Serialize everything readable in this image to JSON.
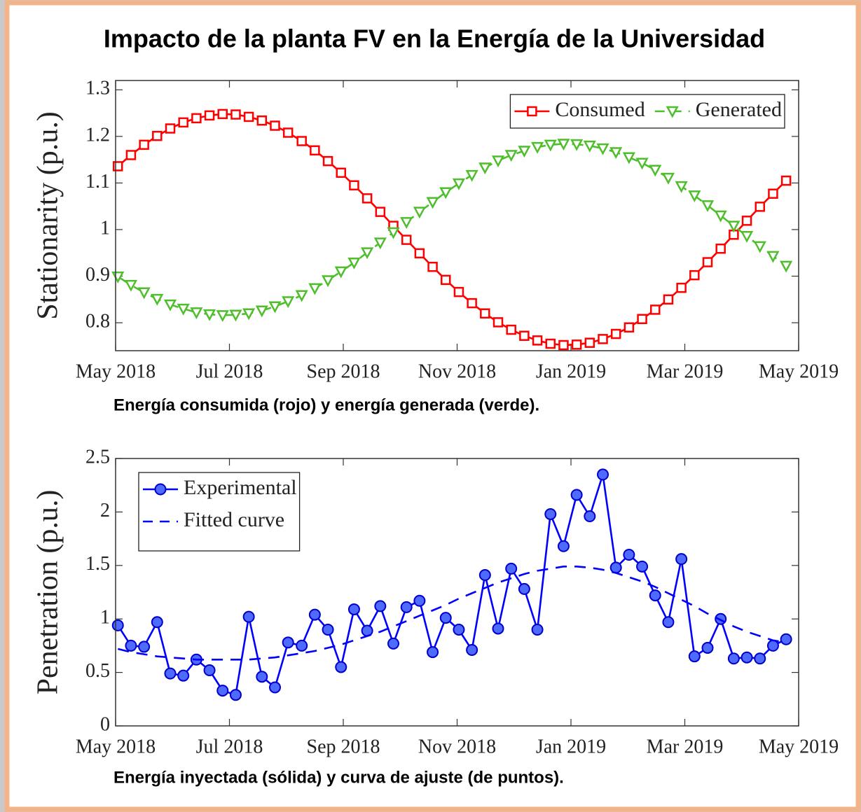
{
  "title": "Impacto de la planta FV en la Energía de la Universidad",
  "chart_data": [
    {
      "type": "line",
      "caption": "Energía consumida (rojo) y energía generada (verde).",
      "ylabel": "Stationarity (p.u.)",
      "xlim": [
        0,
        12
      ],
      "xticks": [
        {
          "value": 0,
          "label": "May 2018"
        },
        {
          "value": 2,
          "label": "Jul 2018"
        },
        {
          "value": 4,
          "label": "Sep 2018"
        },
        {
          "value": 6,
          "label": "Nov 2018"
        },
        {
          "value": 8,
          "label": "Jan 2019"
        },
        {
          "value": 10,
          "label": "Mar 2019"
        },
        {
          "value": 12,
          "label": "May 2019"
        }
      ],
      "ylim": [
        0.74,
        1.32
      ],
      "yticks": [
        0.8,
        0.9,
        1,
        1.1,
        1.2,
        1.3
      ],
      "legend": {
        "loc": "upper right",
        "orientation": "horizontal"
      },
      "x": [
        0.04,
        0.27,
        0.5,
        0.73,
        0.96,
        1.19,
        1.42,
        1.65,
        1.88,
        2.11,
        2.34,
        2.57,
        2.8,
        3.03,
        3.27,
        3.5,
        3.73,
        3.96,
        4.19,
        4.42,
        4.65,
        4.88,
        5.11,
        5.34,
        5.57,
        5.8,
        6.03,
        6.26,
        6.49,
        6.72,
        6.95,
        7.18,
        7.41,
        7.64,
        7.87,
        8.1,
        8.33,
        8.56,
        8.79,
        9.02,
        9.25,
        9.48,
        9.71,
        9.94,
        10.17,
        10.4,
        10.63,
        10.86,
        11.09,
        11.32,
        11.55,
        11.78
      ],
      "series": [
        {
          "name": "Consumed",
          "color": "#ff0000",
          "marker": "square",
          "dashed": false,
          "values": [
            1.136,
            1.16,
            1.182,
            1.201,
            1.217,
            1.23,
            1.239,
            1.245,
            1.248,
            1.247,
            1.242,
            1.234,
            1.223,
            1.208,
            1.19,
            1.17,
            1.147,
            1.122,
            1.095,
            1.067,
            1.038,
            1.008,
            0.978,
            0.949,
            0.92,
            0.892,
            0.866,
            0.842,
            0.82,
            0.801,
            0.785,
            0.772,
            0.762,
            0.755,
            0.752,
            0.753,
            0.757,
            0.765,
            0.776,
            0.79,
            0.808,
            0.828,
            0.85,
            0.875,
            0.902,
            0.93,
            0.959,
            0.989,
            1.019,
            1.049,
            1.077,
            1.105
          ]
        },
        {
          "name": "Generated",
          "color": "#4fbe2c",
          "marker": "triangle-down",
          "dashed": true,
          "values": [
            0.899,
            0.881,
            0.865,
            0.851,
            0.839,
            0.83,
            0.822,
            0.818,
            0.816,
            0.817,
            0.82,
            0.826,
            0.835,
            0.846,
            0.859,
            0.874,
            0.891,
            0.91,
            0.929,
            0.951,
            0.972,
            0.994,
            1.016,
            1.038,
            1.059,
            1.08,
            1.099,
            1.117,
            1.133,
            1.148,
            1.16,
            1.169,
            1.177,
            1.182,
            1.184,
            1.183,
            1.18,
            1.174,
            1.166,
            1.155,
            1.143,
            1.128,
            1.111,
            1.093,
            1.073,
            1.052,
            1.03,
            1.008,
            0.986,
            0.964,
            0.943,
            0.922
          ]
        }
      ]
    },
    {
      "type": "line",
      "caption": "Energía inyectada (sólida) y curva de ajuste (de puntos).",
      "ylabel": "Penetration (p.u.)",
      "xlim": [
        0,
        12
      ],
      "xticks": [
        {
          "value": 0,
          "label": "May 2018"
        },
        {
          "value": 2,
          "label": "Jul 2018"
        },
        {
          "value": 4,
          "label": "Sep 2018"
        },
        {
          "value": 6,
          "label": "Nov 2018"
        },
        {
          "value": 8,
          "label": "Jan 2019"
        },
        {
          "value": 10,
          "label": "Mar 2019"
        },
        {
          "value": 12,
          "label": "May 2019"
        }
      ],
      "ylim": [
        0,
        2.5
      ],
      "yticks": [
        0,
        0.5,
        1,
        1.5,
        2,
        2.5
      ],
      "legend": {
        "loc": "upper left",
        "orientation": "vertical"
      },
      "x": [
        0.04,
        0.27,
        0.5,
        0.73,
        0.96,
        1.19,
        1.42,
        1.65,
        1.88,
        2.11,
        2.34,
        2.57,
        2.8,
        3.03,
        3.27,
        3.5,
        3.73,
        3.96,
        4.19,
        4.42,
        4.65,
        4.88,
        5.11,
        5.34,
        5.57,
        5.8,
        6.03,
        6.26,
        6.49,
        6.72,
        6.95,
        7.18,
        7.41,
        7.64,
        7.87,
        8.1,
        8.33,
        8.56,
        8.79,
        9.02,
        9.25,
        9.48,
        9.71,
        9.94,
        10.17,
        10.4,
        10.63,
        10.86,
        11.09,
        11.32,
        11.55,
        11.78
      ],
      "series": [
        {
          "name": "Experimental",
          "color": "#0000ff",
          "marker": "circle",
          "dashed": false,
          "values": [
            0.94,
            0.75,
            0.74,
            0.97,
            0.49,
            0.47,
            0.62,
            0.52,
            0.33,
            0.29,
            1.02,
            0.46,
            0.36,
            0.78,
            0.75,
            1.04,
            0.9,
            0.55,
            1.09,
            0.89,
            1.12,
            0.77,
            1.11,
            1.17,
            0.69,
            1.01,
            0.9,
            0.71,
            1.41,
            0.91,
            1.47,
            1.28,
            0.9,
            1.98,
            1.68,
            2.16,
            1.96,
            2.35,
            1.48,
            1.6,
            1.49,
            1.22,
            0.97,
            1.56,
            0.65,
            0.73,
            1.0,
            0.63,
            0.64,
            0.63,
            0.75,
            0.81
          ]
        },
        {
          "name": "Fitted curve",
          "color": "#0000ff",
          "marker": "none",
          "dashed": true,
          "values": [
            0.72,
            0.69,
            0.67,
            0.65,
            0.64,
            0.63,
            0.62,
            0.62,
            0.62,
            0.62,
            0.62,
            0.63,
            0.64,
            0.66,
            0.68,
            0.7,
            0.73,
            0.76,
            0.8,
            0.84,
            0.88,
            0.93,
            0.98,
            1.03,
            1.08,
            1.13,
            1.19,
            1.24,
            1.29,
            1.34,
            1.38,
            1.42,
            1.45,
            1.47,
            1.49,
            1.49,
            1.48,
            1.46,
            1.43,
            1.39,
            1.35,
            1.3,
            1.24,
            1.18,
            1.12,
            1.05,
            0.99,
            0.93,
            0.88,
            0.84,
            0.8,
            0.78
          ]
        }
      ]
    }
  ]
}
